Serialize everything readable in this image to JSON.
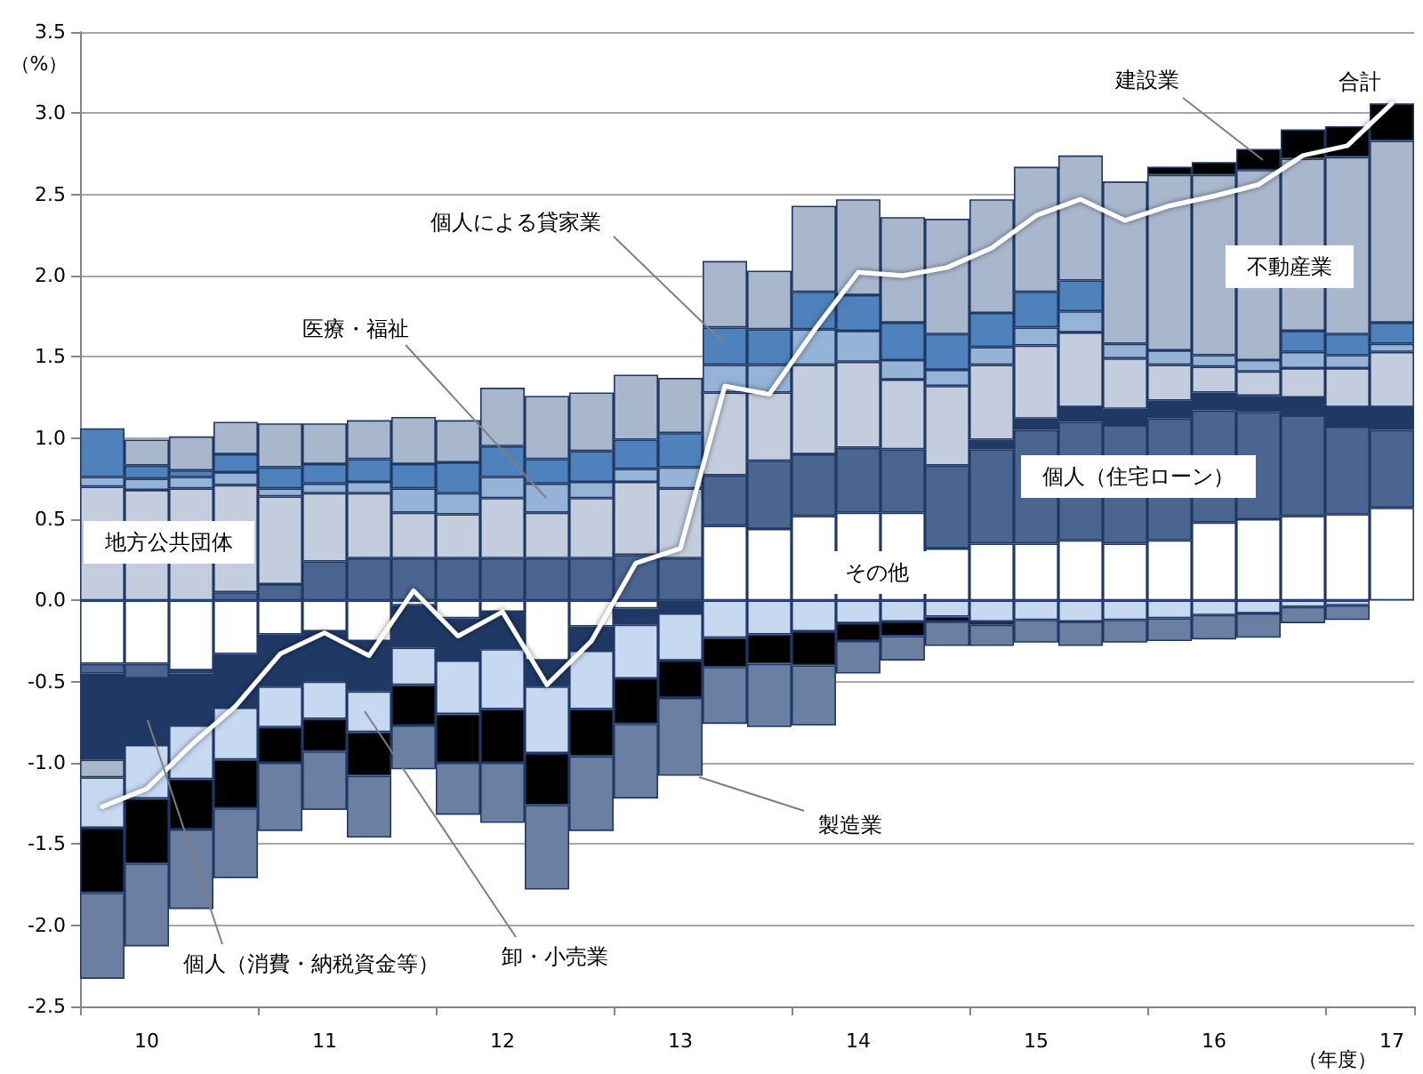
{
  "chart_data": {
    "type": "bar",
    "stacked": true,
    "xlabel": "（年度）",
    "ylabel": "（%）",
    "categories": [
      null,
      "10",
      null,
      null,
      null,
      "11",
      null,
      null,
      null,
      "12",
      null,
      null,
      null,
      "13",
      null,
      null,
      null,
      "14",
      null,
      null,
      null,
      "15",
      null,
      null,
      null,
      "16",
      null,
      null,
      null,
      "17"
    ],
    "ylim": [
      -2.5,
      3.5
    ],
    "yticks": [
      -2.5,
      {
        "value": -2,
        "label": "-2.0"
      },
      -1.5,
      {
        "value": -1,
        "label": "-1.0"
      },
      -0.5,
      {
        "value": 0,
        "label": "0.0"
      },
      0.5,
      {
        "value": 1,
        "label": "1.0"
      },
      1.5,
      {
        "value": 2,
        "label": "2.0"
      },
      2.5,
      {
        "value": 3,
        "label": "3.0"
      },
      3.5
    ],
    "grid": "y",
    "legend": false,
    "series": [
      {
        "name": "その他",
        "color": "#ffffff",
        "values": [
          -0.39,
          -0.39,
          -0.43,
          -0.33,
          -0.21,
          -0.19,
          -0.25,
          -0.03,
          -0.11,
          -0.07,
          -0.37,
          -0.16,
          -0.05,
          null,
          0.46,
          0.44,
          0.52,
          0.54,
          0.54,
          0.32,
          0.35,
          0.35,
          0.37,
          0.35,
          0.37,
          0.48,
          0.5,
          0.52,
          0.53,
          0.57
        ]
      },
      {
        "name": "個人（住宅ローン）",
        "color": "#4a6590",
        "values": [
          -0.06,
          -0.09,
          -0.02,
          0.05,
          0.1,
          0.24,
          0.26,
          0.26,
          0.26,
          0.26,
          0.26,
          0.26,
          0.28,
          0.26,
          0.31,
          0.42,
          0.38,
          0.4,
          0.39,
          0.51,
          0.58,
          0.7,
          0.73,
          0.73,
          0.75,
          0.69,
          0.66,
          0.62,
          0.54,
          0.48
        ]
      },
      {
        "name": "個人（消費・納税資金等）",
        "color": "#1f3864",
        "values": [
          -0.53,
          -0.41,
          -0.32,
          -0.33,
          -0.32,
          -0.31,
          -0.31,
          -0.26,
          -0.26,
          -0.23,
          -0.16,
          -0.15,
          -0.1,
          -0.08,
          null,
          null,
          null,
          null,
          null,
          null,
          0.06,
          0.07,
          0.09,
          0.1,
          0.11,
          0.11,
          0.1,
          0.11,
          0.12,
          0.14
        ]
      },
      {
        "name": "地方公共団体",
        "color": "#c3cddd",
        "values": [
          0.7,
          0.68,
          0.69,
          0.66,
          0.54,
          0.42,
          0.4,
          0.28,
          0.27,
          0.37,
          0.28,
          0.37,
          0.45,
          0.43,
          0.51,
          0.42,
          0.55,
          0.53,
          0.43,
          0.49,
          0.46,
          0.45,
          0.46,
          0.31,
          0.22,
          0.16,
          0.15,
          0.18,
          0.24,
          0.34
        ]
      },
      {
        "name": "医療・福祉",
        "color": "#95b3d7",
        "values": [
          0.06,
          0.07,
          0.07,
          0.08,
          0.05,
          0.06,
          0.07,
          0.15,
          0.13,
          0.13,
          0.18,
          0.1,
          0.08,
          0.13,
          0.17,
          0.17,
          0.22,
          0.19,
          0.12,
          0.1,
          0.11,
          0.11,
          0.13,
          0.09,
          0.09,
          0.07,
          0.07,
          0.1,
          0.08,
          0.05
        ]
      },
      {
        "name": "個人による貸家業",
        "color": "#4f81bd",
        "values": [
          0.3,
          0.08,
          0.04,
          0.11,
          0.13,
          0.12,
          0.14,
          0.15,
          0.19,
          0.19,
          0.15,
          0.19,
          0.18,
          0.21,
          0.23,
          0.22,
          0.23,
          0.22,
          0.23,
          0.22,
          0.21,
          0.22,
          0.19,
          null,
          null,
          null,
          null,
          0.13,
          0.13,
          0.13
        ]
      },
      {
        "name": "不動産業",
        "color": "#a9b7cd",
        "values": [
          -0.11,
          0.16,
          0.21,
          0.2,
          0.27,
          0.25,
          0.24,
          0.29,
          0.26,
          0.36,
          0.39,
          0.36,
          0.4,
          0.34,
          0.41,
          0.36,
          0.53,
          0.59,
          0.65,
          0.71,
          0.7,
          0.77,
          0.77,
          1.0,
          1.08,
          1.11,
          1.17,
          1.06,
          1.09,
          1.12
        ]
      },
      {
        "name": "卸・小売業",
        "color": "#c6d9f1",
        "values": [
          -0.31,
          -0.33,
          -0.33,
          -0.32,
          -0.25,
          -0.23,
          -0.25,
          -0.23,
          -0.33,
          -0.37,
          -0.41,
          -0.36,
          -0.33,
          -0.29,
          -0.23,
          -0.21,
          -0.19,
          -0.14,
          -0.13,
          -0.1,
          -0.13,
          -0.12,
          -0.13,
          -0.12,
          -0.11,
          -0.09,
          -0.08,
          -0.04,
          -0.03,
          null
        ]
      },
      {
        "name": "建設業",
        "color": "#000000",
        "values": [
          -0.4,
          -0.4,
          -0.31,
          -0.3,
          -0.22,
          -0.2,
          -0.27,
          -0.25,
          -0.3,
          -0.33,
          -0.32,
          -0.29,
          -0.28,
          -0.23,
          -0.18,
          -0.18,
          -0.21,
          -0.11,
          -0.09,
          -0.03,
          -0.02,
          null,
          null,
          null,
          0.05,
          0.08,
          0.13,
          0.18,
          0.19,
          0.23
        ]
      },
      {
        "name": "製造業",
        "color": "#6b7fa3",
        "values": [
          -0.53,
          -0.51,
          -0.49,
          -0.43,
          -0.42,
          -0.36,
          -0.38,
          -0.27,
          -0.32,
          -0.37,
          -0.52,
          -0.46,
          -0.46,
          -0.48,
          -0.35,
          -0.39,
          -0.37,
          -0.2,
          -0.15,
          -0.15,
          -0.13,
          -0.14,
          -0.15,
          -0.14,
          -0.14,
          -0.15,
          -0.15,
          -0.1,
          -0.09,
          null
        ]
      },
      {
        "name": "合計",
        "type": "line",
        "color": "#ffffff",
        "marker": "none",
        "values": [
          -1.27,
          -1.16,
          -0.89,
          -0.65,
          -0.33,
          -0.2,
          -0.34,
          0.06,
          -0.22,
          -0.07,
          -0.52,
          -0.25,
          0.23,
          0.32,
          1.32,
          1.27,
          1.66,
          2.02,
          2.0,
          2.05,
          2.17,
          2.37,
          2.47,
          2.34,
          2.43,
          2.49,
          2.56,
          2.74,
          2.8,
          3.06
        ]
      }
    ]
  }
}
